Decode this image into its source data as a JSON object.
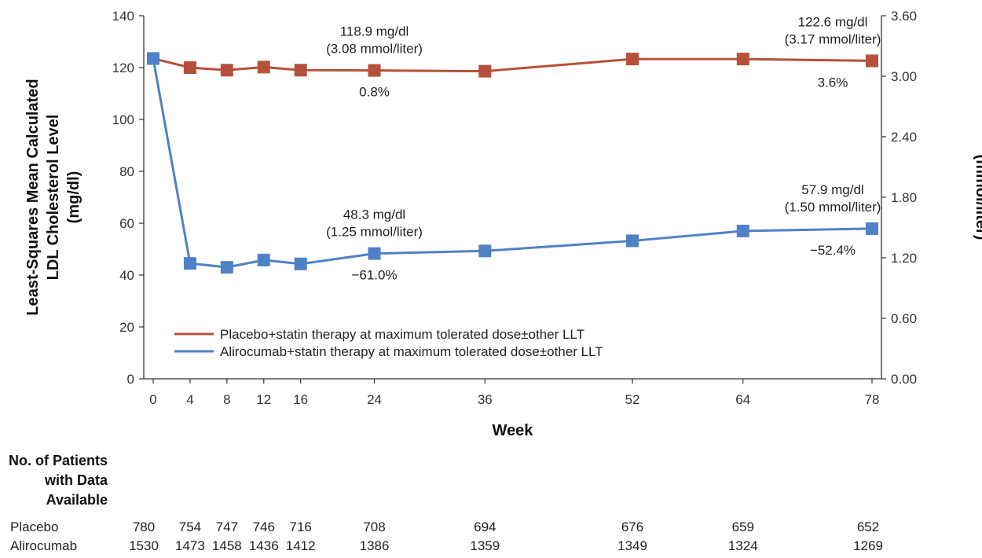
{
  "chart_data": {
    "type": "line",
    "xlabel": "Week",
    "ylabel_left": "Least-Squares Mean Calculated LDL Cholesterol Level (mg/dl)",
    "ylabel_left_lines": [
      "Least-Squares Mean Calculated",
      "LDL Cholesterol Level",
      "(mg/dl)"
    ],
    "ylabel_right": "(mmol/liter)",
    "x": [
      0,
      4,
      8,
      12,
      16,
      24,
      36,
      52,
      64,
      78
    ],
    "x_ticks": [
      "0",
      "4",
      "8",
      "12",
      "16",
      "24",
      "36",
      "52",
      "64",
      "78"
    ],
    "ylim": [
      0,
      140
    ],
    "y_ticks": [
      "0",
      "20",
      "40",
      "60",
      "80",
      "100",
      "120",
      "140"
    ],
    "y2lim": [
      0,
      3.6
    ],
    "y2_ticks": [
      "0.00",
      "0.60",
      "1.20",
      "1.80",
      "2.40",
      "3.00",
      "3.60"
    ],
    "grid": false,
    "legend_position": "lower-left",
    "series": [
      {
        "name": "Placebo+statin therapy at maximum tolerated dose±other LLT",
        "color": "#b5513a",
        "values": [
          123.5,
          120.0,
          119.0,
          120.2,
          119.0,
          118.9,
          118.6,
          123.3,
          123.3,
          122.6
        ]
      },
      {
        "name": "Alirocumab+statin therapy at maximum tolerated dose±other LLT",
        "color": "#4f81c7",
        "values": [
          123.5,
          44.5,
          43.0,
          45.8,
          44.3,
          48.3,
          49.3,
          53.2,
          57.0,
          57.9
        ]
      }
    ],
    "annotations": [
      {
        "lines": [
          "118.9 mg/dl",
          "(3.08 mmol/liter)"
        ],
        "x": 24,
        "y": 118.9,
        "place": "above"
      },
      {
        "lines": [
          "0.8%"
        ],
        "x": 24,
        "y": 118.9,
        "place": "below"
      },
      {
        "lines": [
          "122.6 mg/dl",
          "(3.17 mmol/liter)"
        ],
        "x": 78,
        "y": 122.6,
        "place": "above"
      },
      {
        "lines": [
          "3.6%"
        ],
        "x": 78,
        "y": 122.6,
        "place": "below"
      },
      {
        "lines": [
          "48.3 mg/dl",
          "(1.25 mmol/liter)"
        ],
        "x": 24,
        "y": 48.3,
        "place": "above"
      },
      {
        "lines": [
          "−61.0%"
        ],
        "x": 24,
        "y": 48.3,
        "place": "below"
      },
      {
        "lines": [
          "57.9 mg/dl",
          "(1.50 mmol/liter)"
        ],
        "x": 78,
        "y": 57.9,
        "place": "above"
      },
      {
        "lines": [
          "−52.4%"
        ],
        "x": 78,
        "y": 57.9,
        "place": "below"
      }
    ],
    "patients_table": {
      "heading_lines": [
        "No. of Patients",
        "with Data",
        "Available"
      ],
      "rows": [
        {
          "label": "Placebo",
          "values": [
            "780",
            "754",
            "747",
            "746",
            "716",
            "708",
            "694",
            "676",
            "659",
            "652"
          ]
        },
        {
          "label": "Alirocumab",
          "values": [
            "1530",
            "1473",
            "1458",
            "1436",
            "1412",
            "1386",
            "1359",
            "1349",
            "1324",
            "1269"
          ]
        }
      ]
    }
  }
}
